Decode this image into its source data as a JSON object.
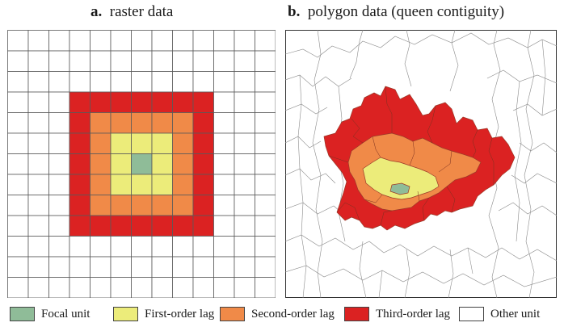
{
  "panels": [
    {
      "letter": "a.",
      "title": "raster data"
    },
    {
      "letter": "b.",
      "title": "polygon data (queen contiguity)"
    }
  ],
  "grid": {
    "rows": 13,
    "cols": 13,
    "focal_row": 6,
    "focal_col": 6
  },
  "classes": [
    {
      "key": "focal",
      "label": "Focal unit",
      "color": "#8fbc98"
    },
    {
      "key": "lag1",
      "label": "First-order lag",
      "color": "#ecec7a"
    },
    {
      "key": "lag2",
      "label": "Second-order lag",
      "color": "#f08a48"
    },
    {
      "key": "lag3",
      "label": "Third-order lag",
      "color": "#db2222"
    },
    {
      "key": "other",
      "label": "Other unit",
      "color": "#ffffff"
    }
  ]
}
